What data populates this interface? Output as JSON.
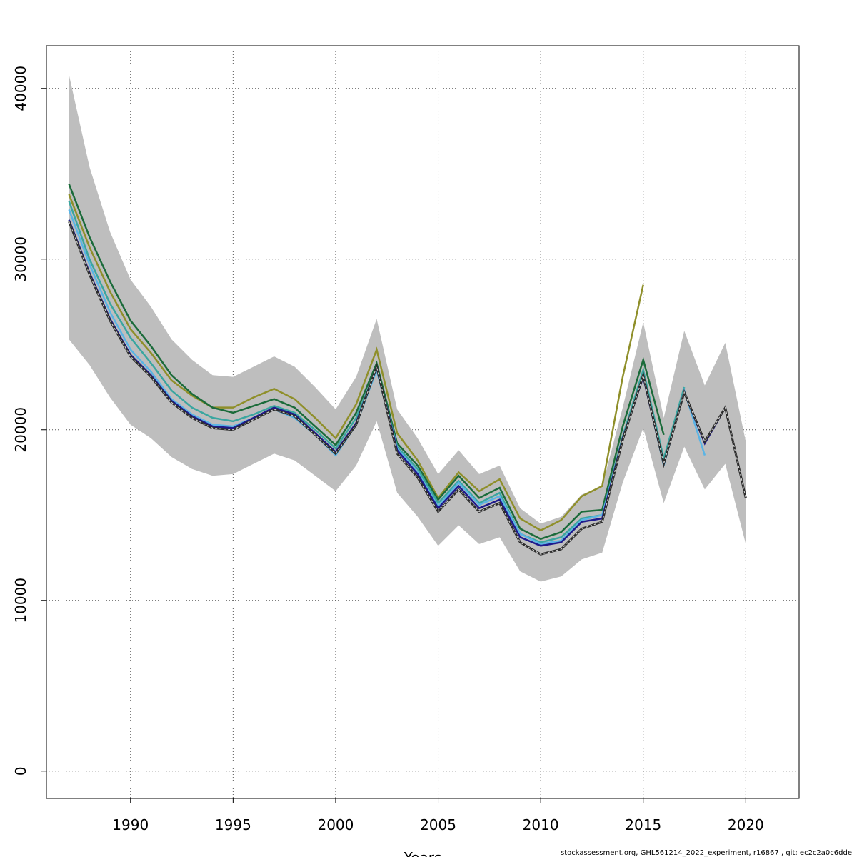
{
  "chart_data": {
    "type": "line",
    "xlabel": "Years",
    "ylabel": "",
    "xlim": [
      1985.9,
      2022.6
    ],
    "ylim": [
      -1600,
      42500
    ],
    "x_ticks": [
      1990,
      1995,
      2000,
      2005,
      2010,
      2015,
      2020
    ],
    "y_ticks": [
      0,
      10000,
      20000,
      30000,
      40000
    ],
    "x_tick_labels": [
      "1990",
      "1995",
      "2000",
      "2005",
      "2010",
      "2015",
      "2020"
    ],
    "y_tick_labels": [
      "0",
      "10000",
      "20000",
      "30000",
      "40000"
    ],
    "grid": true,
    "grid_style": "dotted",
    "footer": "stockassessment.org, GHL561214_2022_experiment, r16867 , git: ec2c2a0c6dde",
    "band": {
      "color": "#bebebe",
      "x": [
        1987,
        1988,
        1989,
        1990,
        1991,
        1992,
        1993,
        1994,
        1995,
        1996,
        1997,
        1998,
        1999,
        2000,
        2001,
        2002,
        2003,
        2004,
        2005,
        2006,
        2007,
        2008,
        2009,
        2010,
        2011,
        2012,
        2013,
        2014,
        2015,
        2016,
        2017,
        2018,
        2019,
        2020
      ],
      "upper": [
        40800,
        35400,
        31600,
        28800,
        27200,
        25300,
        24100,
        23200,
        23100,
        23700,
        24300,
        23700,
        22500,
        21200,
        23100,
        26500,
        21200,
        19500,
        17400,
        18800,
        17400,
        17900,
        15400,
        14500,
        14900,
        16200,
        16700,
        21300,
        26300,
        20700,
        25800,
        22600,
        25100,
        19300
      ],
      "lower": [
        25300,
        23800,
        21900,
        20300,
        19500,
        18400,
        17700,
        17300,
        17400,
        18000,
        18600,
        18200,
        17300,
        16400,
        17900,
        20500,
        16300,
        14900,
        13200,
        14400,
        13300,
        13700,
        11700,
        11100,
        11400,
        12400,
        12800,
        16900,
        20100,
        15700,
        19000,
        16500,
        18000,
        13300
      ]
    },
    "series": [
      {
        "color": "#2b2b2b",
        "dashed": true,
        "x": [
          1987,
          1988,
          1989,
          1990,
          1991,
          1992,
          1993,
          1994,
          1995,
          1996,
          1997,
          1998,
          1999,
          2000,
          2001,
          2002,
          2003,
          2004,
          2005,
          2006,
          2007,
          2008,
          2009,
          2010,
          2011,
          2012,
          2013,
          2014,
          2015,
          2016,
          2017,
          2018,
          2019,
          2020
        ],
        "values": [
          32200,
          29100,
          26400,
          24300,
          23100,
          21600,
          20700,
          20100,
          20000,
          20600,
          21200,
          20800,
          19700,
          18600,
          20300,
          23700,
          18600,
          17200,
          15200,
          16500,
          15200,
          15700,
          13400,
          12700,
          13000,
          14200,
          14600,
          19400,
          23200,
          18000,
          22200,
          19300,
          21300,
          16000
        ]
      },
      {
        "color": "#1f1a8c",
        "dashed": false,
        "x": [
          1987,
          1988,
          1989,
          1990,
          1991,
          1992,
          1993,
          1994,
          1995,
          1996,
          1997,
          1998,
          1999,
          2000,
          2001,
          2002,
          2003,
          2004,
          2005,
          2006,
          2007,
          2008,
          2009,
          2010,
          2011,
          2012,
          2013,
          2014,
          2015,
          2016,
          2017,
          2018,
          2019
        ],
        "values": [
          32300,
          29200,
          26500,
          24400,
          23200,
          21700,
          20800,
          20200,
          20100,
          20700,
          21300,
          20900,
          19800,
          18700,
          20400,
          23700,
          18800,
          17400,
          15400,
          16700,
          15400,
          15900,
          13700,
          13200,
          13400,
          14600,
          14800,
          19500,
          23100,
          18000,
          22200,
          19200,
          21300
        ]
      },
      {
        "color": "#5ab4e5",
        "dashed": false,
        "x": [
          1987,
          1988,
          1989,
          1990,
          1991,
          1992,
          1993,
          1994,
          1995,
          1996,
          1997,
          1998,
          1999,
          2000,
          2001,
          2002,
          2003,
          2004,
          2005,
          2006,
          2007,
          2008,
          2009,
          2010,
          2011,
          2012,
          2013,
          2014,
          2015,
          2016,
          2017,
          2018
        ],
        "values": [
          32900,
          29700,
          26900,
          24700,
          23400,
          21800,
          20900,
          20300,
          20200,
          20700,
          21200,
          20700,
          19700,
          18500,
          20300,
          23500,
          18900,
          17500,
          15500,
          16900,
          15600,
          16100,
          13900,
          13300,
          13500,
          14700,
          15000,
          19400,
          23200,
          17900,
          22300,
          18500
        ]
      },
      {
        "color": "#3aa6a0",
        "dashed": false,
        "x": [
          1987,
          1988,
          1989,
          1990,
          1991,
          1992,
          1993,
          1994,
          1995,
          1996,
          1997,
          1998,
          1999,
          2000,
          2001,
          2002,
          2003,
          2004,
          2005,
          2006,
          2007,
          2008,
          2009,
          2010,
          2011,
          2012,
          2013,
          2014,
          2015,
          2016,
          2017
        ],
        "values": [
          33400,
          30000,
          27400,
          25400,
          23900,
          22300,
          21300,
          20700,
          20500,
          20900,
          21400,
          21000,
          20000,
          18900,
          20700,
          23600,
          19000,
          17700,
          15700,
          17000,
          15700,
          16300,
          13900,
          13400,
          13700,
          14800,
          15000,
          19600,
          23500,
          18300,
          22500
        ]
      },
      {
        "color": "#1b6b3a",
        "dashed": false,
        "x": [
          1987,
          1988,
          1989,
          1990,
          1991,
          1992,
          1993,
          1994,
          1995,
          1996,
          1997,
          1998,
          1999,
          2000,
          2001,
          2002,
          2003,
          2004,
          2005,
          2006,
          2007,
          2008,
          2009,
          2010,
          2011,
          2012,
          2013,
          2014,
          2015,
          2016
        ],
        "values": [
          34400,
          31300,
          28700,
          26400,
          24900,
          23200,
          22100,
          21300,
          21000,
          21400,
          21800,
          21300,
          20200,
          19100,
          21000,
          23900,
          19200,
          17900,
          15900,
          17300,
          16000,
          16600,
          14200,
          13600,
          14000,
          15200,
          15300,
          20200,
          24100,
          19700
        ]
      },
      {
        "color": "#8f8f2a",
        "dashed": false,
        "x": [
          1987,
          1988,
          1989,
          1990,
          1991,
          1992,
          1993,
          1994,
          1995,
          1996,
          1997,
          1998,
          1999,
          2000,
          2001,
          2002,
          2003,
          2004,
          2005,
          2006,
          2007,
          2008,
          2009,
          2010,
          2011,
          2012,
          2013,
          2014,
          2015
        ],
        "values": [
          33800,
          30700,
          28100,
          25900,
          24500,
          22900,
          22000,
          21300,
          21300,
          21900,
          22400,
          21800,
          20700,
          19500,
          21500,
          24700,
          19800,
          18200,
          16000,
          17500,
          16400,
          17100,
          14800,
          14100,
          14700,
          16100,
          16700,
          23100,
          28500
        ]
      }
    ]
  }
}
